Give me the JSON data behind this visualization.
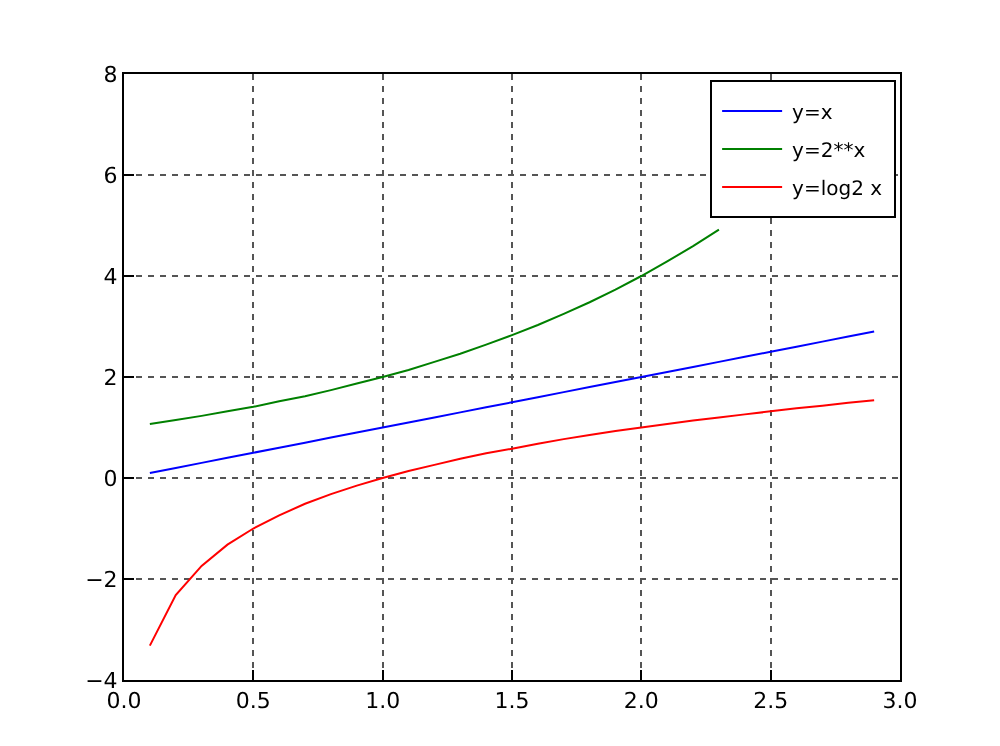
{
  "chart_data": {
    "type": "line",
    "x": [
      0.1,
      0.2,
      0.3,
      0.4,
      0.5,
      0.6,
      0.7,
      0.8,
      0.9,
      1.0,
      1.1,
      1.2,
      1.3,
      1.4,
      1.5,
      1.6,
      1.7,
      1.8,
      1.9,
      2.0,
      2.1,
      2.2,
      2.3,
      2.4,
      2.5,
      2.6,
      2.7,
      2.8,
      2.9
    ],
    "series": [
      {
        "name": "y=x",
        "color": "#0000ff",
        "values": [
          0.1,
          0.2,
          0.3,
          0.4,
          0.5,
          0.6,
          0.7,
          0.8,
          0.9,
          1.0,
          1.1,
          1.2,
          1.3,
          1.4,
          1.5,
          1.6,
          1.7,
          1.8,
          1.9,
          2.0,
          2.1,
          2.2,
          2.3,
          2.4,
          2.5,
          2.6,
          2.7,
          2.8,
          2.9
        ]
      },
      {
        "name": "y=2**x",
        "color": "#008000",
        "values": [
          1.07,
          1.15,
          1.23,
          1.32,
          1.41,
          1.52,
          1.62,
          1.74,
          1.87,
          2.0,
          2.14,
          2.3,
          2.46,
          2.64,
          2.83,
          3.03,
          3.25,
          3.48,
          3.73,
          4.0,
          4.29,
          4.59,
          4.92,
          null,
          null,
          null,
          null,
          null,
          null
        ]
      },
      {
        "name": "y=log2 x",
        "color": "#ff0000",
        "values": [
          -3.32,
          -2.32,
          -1.74,
          -1.32,
          -1.0,
          -0.74,
          -0.51,
          -0.32,
          -0.15,
          0.0,
          0.14,
          0.26,
          0.38,
          0.49,
          0.58,
          0.68,
          0.77,
          0.85,
          0.93,
          1.0,
          1.07,
          1.14,
          1.2,
          1.26,
          1.32,
          1.38,
          1.43,
          1.49,
          1.54
        ]
      }
    ],
    "xlim": [
      0.0,
      3.0
    ],
    "xticks": [
      {
        "value": 0,
        "label": "0.0"
      },
      {
        "value": 0.5,
        "label": "0.5"
      },
      {
        "value": 1,
        "label": "1.0"
      },
      {
        "value": 1.5,
        "label": "1.5"
      },
      {
        "value": 2,
        "label": "2.0"
      },
      {
        "value": 2.5,
        "label": "2.5"
      },
      {
        "value": 3,
        "label": "3.0"
      }
    ],
    "ylim": [
      -4,
      8
    ],
    "yticks": [
      {
        "value": -4,
        "label": "−4"
      },
      {
        "value": -2,
        "label": "−2"
      },
      0,
      2,
      4,
      6,
      8
    ],
    "grid": true,
    "legend": "top right",
    "line_style": "solid",
    "marker": "none"
  }
}
